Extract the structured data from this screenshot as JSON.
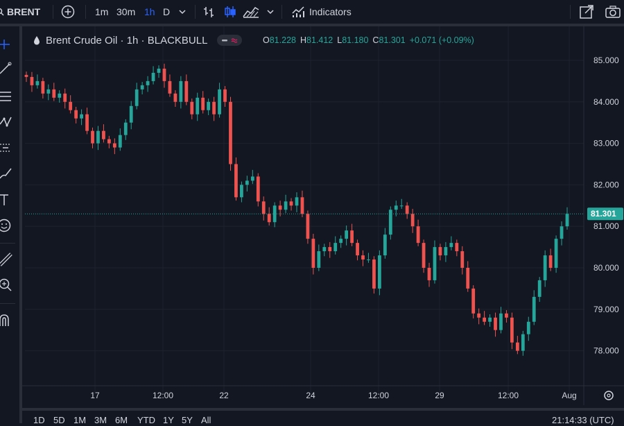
{
  "toolbar": {
    "symbol": "BRENT",
    "intervals": [
      "1m",
      "30m",
      "1h",
      "D"
    ],
    "active_interval": "1h",
    "indicators_label": "Indicators"
  },
  "legend": {
    "title": "Brent Crude Oil · 1h · BLACKBULL",
    "open_key": "O",
    "open": "81.228",
    "high_key": "H",
    "high": "81.412",
    "low_key": "L",
    "low": "81.180",
    "close_key": "C",
    "close": "81.301",
    "change": "+0.071 (+0.09%)"
  },
  "price_axis": {
    "labels": [
      "85.000",
      "84.000",
      "83.000",
      "82.000",
      "81.000",
      "80.000",
      "79.000",
      "78.000"
    ],
    "current": "81.301"
  },
  "time_axis": {
    "labels": [
      "17",
      "12:00",
      "22",
      "24",
      "12:00",
      "29",
      "12:00",
      "Aug"
    ]
  },
  "bottom": {
    "ranges": [
      "1D",
      "5D",
      "1M",
      "3M",
      "6M",
      "YTD",
      "1Y",
      "5Y",
      "All"
    ],
    "clock": "21:14:33 (UTC)"
  },
  "colors": {
    "up": "#26a69a",
    "down": "#ef5350",
    "bg": "#131722",
    "grid": "#1e222d",
    "accent": "#2962ff"
  },
  "chart_data": {
    "type": "candlestick",
    "title": "Brent Crude Oil · 1h · BLACKBULL",
    "xlabel": "",
    "ylabel": "",
    "ylim": [
      77.7,
      85.4
    ],
    "x_ticks": [
      "17",
      "12:00",
      "22",
      "24",
      "12:00",
      "29",
      "12:00",
      "Aug"
    ],
    "y_ticks": [
      78,
      79,
      80,
      81,
      82,
      83,
      84,
      85
    ],
    "current_price": 81.301,
    "grid": true,
    "series": [
      {
        "values": [
          84.6,
          84.4,
          84.5,
          84.2,
          84.3,
          84.1,
          84.2,
          84.0,
          83.8,
          83.6,
          83.7,
          83.3,
          83.0,
          83.3,
          83.1,
          83.0,
          82.9,
          83.2,
          83.5,
          83.9,
          84.3,
          84.4,
          84.5,
          84.7,
          84.8,
          84.5,
          84.2,
          84.0,
          84.5,
          84.0,
          83.7,
          84.1,
          83.8,
          84.0,
          83.7,
          84.3,
          84.0,
          82.5,
          81.7,
          82.0,
          82.1,
          82.2,
          81.6,
          81.3,
          81.1,
          81.5,
          81.4,
          81.6,
          81.5,
          81.7,
          81.3,
          80.7,
          80.0,
          80.4,
          80.5,
          80.4,
          80.6,
          80.7,
          80.9,
          80.6,
          80.3,
          80.2,
          80.2,
          79.5,
          80.3,
          80.8,
          81.4,
          81.5,
          81.5,
          81.3,
          81.0,
          80.6,
          80.0,
          79.7,
          80.5,
          80.3,
          80.5,
          80.6,
          80.4,
          80.0,
          79.5,
          78.9,
          78.8,
          78.7,
          78.8,
          78.5,
          78.9,
          78.8,
          78.2,
          78.0,
          78.4,
          78.7,
          79.3,
          79.7,
          80.3,
          80.0,
          80.7,
          81.0,
          81.3
        ]
      }
    ]
  }
}
